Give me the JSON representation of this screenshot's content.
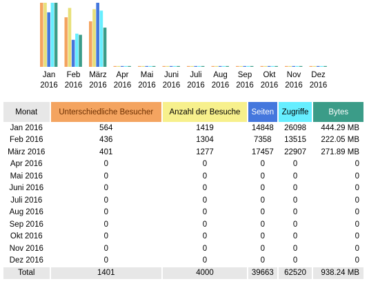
{
  "chart_data": {
    "type": "bar",
    "categories": [
      {
        "month": "Jan",
        "year": "2016"
      },
      {
        "month": "Feb",
        "year": "2016"
      },
      {
        "month": "März",
        "year": "2016"
      },
      {
        "month": "Apr",
        "year": "2016"
      },
      {
        "month": "Mai",
        "year": "2016"
      },
      {
        "month": "Juni",
        "year": "2016"
      },
      {
        "month": "Juli",
        "year": "2016"
      },
      {
        "month": "Aug",
        "year": "2016"
      },
      {
        "month": "Sep",
        "year": "2016"
      },
      {
        "month": "Okt",
        "year": "2016"
      },
      {
        "month": "Nov",
        "year": "2016"
      },
      {
        "month": "Dez",
        "year": "2016"
      }
    ],
    "series": [
      {
        "name": "Unterschiedliche Besucher",
        "color": "#f4a460",
        "values": [
          564,
          436,
          401,
          0,
          0,
          0,
          0,
          0,
          0,
          0,
          0,
          0
        ]
      },
      {
        "name": "Anzahl der Besuche",
        "color": "#e8e07a",
        "values": [
          1419,
          1304,
          1277,
          0,
          0,
          0,
          0,
          0,
          0,
          0,
          0,
          0
        ]
      },
      {
        "name": "Seiten",
        "color": "#4477dd",
        "values": [
          14848,
          7358,
          17457,
          0,
          0,
          0,
          0,
          0,
          0,
          0,
          0,
          0
        ]
      },
      {
        "name": "Zugriffe",
        "color": "#66eeff",
        "values": [
          26098,
          13515,
          22907,
          0,
          0,
          0,
          0,
          0,
          0,
          0,
          0,
          0
        ]
      },
      {
        "name": "Bytes",
        "color": "#3b9c88",
        "values": [
          444.29,
          222.05,
          271.89,
          0,
          0,
          0,
          0,
          0,
          0,
          0,
          0,
          0
        ]
      }
    ]
  },
  "table": {
    "headers": {
      "month": "Monat",
      "visitors": "Unterschiedliche Besucher",
      "visits": "Anzahl der Besuche",
      "pages": "Seiten",
      "hits": "Zugriffe",
      "bytes": "Bytes"
    },
    "rows": [
      {
        "month": "Jan 2016",
        "visitors": "564",
        "visits": "1419",
        "pages": "14848",
        "hits": "26098",
        "bytes": "444.29 MB"
      },
      {
        "month": "Feb 2016",
        "visitors": "436",
        "visits": "1304",
        "pages": "7358",
        "hits": "13515",
        "bytes": "222.05 MB"
      },
      {
        "month": "März 2016",
        "visitors": "401",
        "visits": "1277",
        "pages": "17457",
        "hits": "22907",
        "bytes": "271.89 MB"
      },
      {
        "month": "Apr 2016",
        "visitors": "0",
        "visits": "0",
        "pages": "0",
        "hits": "0",
        "bytes": "0"
      },
      {
        "month": "Mai 2016",
        "visitors": "0",
        "visits": "0",
        "pages": "0",
        "hits": "0",
        "bytes": "0"
      },
      {
        "month": "Juni 2016",
        "visitors": "0",
        "visits": "0",
        "pages": "0",
        "hits": "0",
        "bytes": "0"
      },
      {
        "month": "Juli 2016",
        "visitors": "0",
        "visits": "0",
        "pages": "0",
        "hits": "0",
        "bytes": "0"
      },
      {
        "month": "Aug 2016",
        "visitors": "0",
        "visits": "0",
        "pages": "0",
        "hits": "0",
        "bytes": "0"
      },
      {
        "month": "Sep 2016",
        "visitors": "0",
        "visits": "0",
        "pages": "0",
        "hits": "0",
        "bytes": "0"
      },
      {
        "month": "Okt 2016",
        "visitors": "0",
        "visits": "0",
        "pages": "0",
        "hits": "0",
        "bytes": "0"
      },
      {
        "month": "Nov 2016",
        "visitors": "0",
        "visits": "0",
        "pages": "0",
        "hits": "0",
        "bytes": "0"
      },
      {
        "month": "Dez 2016",
        "visitors": "0",
        "visits": "0",
        "pages": "0",
        "hits": "0",
        "bytes": "0"
      }
    ],
    "total": {
      "month": "Total",
      "visitors": "1401",
      "visits": "4000",
      "pages": "39663",
      "hits": "62520",
      "bytes": "938.24 MB"
    }
  }
}
